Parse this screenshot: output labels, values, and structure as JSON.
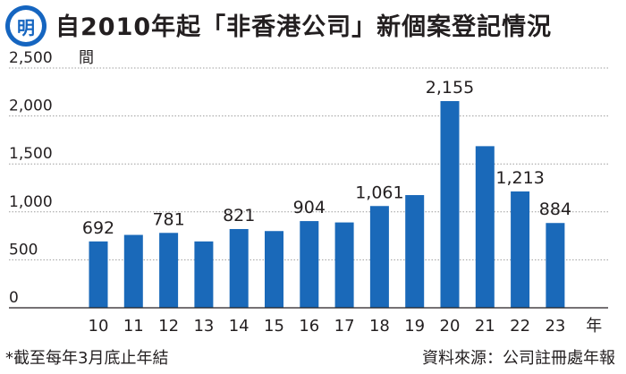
{
  "header": {
    "logo_text": "明",
    "title": "自2010年起「非香港公司」新個案登記情況"
  },
  "colors": {
    "bar": "#1a69b9",
    "logo": "#1565c0",
    "grid": "#9e9e9e",
    "text": "#231f20"
  },
  "chart_data": {
    "type": "bar",
    "title": "自2010年起「非香港公司」新個案登記情況",
    "ylabel": "間",
    "xlabel": "年",
    "ylim": [
      0,
      2500
    ],
    "yticks": [
      0,
      500,
      1000,
      1500,
      2000,
      2500
    ],
    "ytick_labels": [
      "0",
      "500",
      "1,000",
      "1,500",
      "2,000",
      "2,500"
    ],
    "categories": [
      "10",
      "11",
      "12",
      "13",
      "14",
      "15",
      "16",
      "17",
      "18",
      "19",
      "20",
      "21",
      "22",
      "23"
    ],
    "values": [
      692,
      760,
      781,
      692,
      821,
      800,
      904,
      890,
      1061,
      1175,
      2155,
      1685,
      1213,
      884
    ],
    "data_labels": [
      "692",
      "",
      "781",
      "",
      "821",
      "",
      "904",
      "",
      "1,061",
      "",
      "2,155",
      "",
      "1,213",
      "884"
    ],
    "grid": true
  },
  "footer": {
    "note": "*截至每年3月底止年結",
    "source": "資料來源：公司註冊處年報"
  }
}
